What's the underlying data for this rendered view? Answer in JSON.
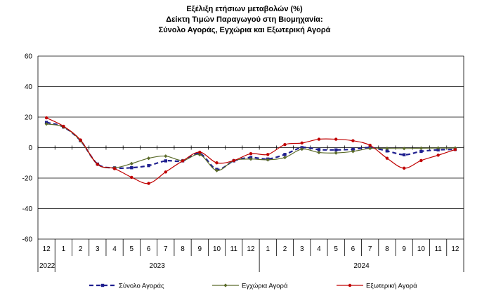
{
  "chart_data": {
    "type": "line",
    "title_lines": [
      "Εξέλιξη ετήσιων μεταβολών (%)",
      "Δείκτη Τιμών Παραγωγού στη Βιομηχανία:",
      "Σύνολο Αγοράς, Εγχώρια και Εξωτερική Αγορά"
    ],
    "xlabel": "",
    "ylabel": "",
    "ylim": [
      -60,
      60
    ],
    "yticks": [
      "60",
      "40",
      "20",
      "0",
      "-20",
      "-40",
      "-60"
    ],
    "grid": true,
    "legend_position": "bottom",
    "categories": [
      "12",
      "1",
      "2",
      "3",
      "4",
      "5",
      "6",
      "7",
      "8",
      "9",
      "10",
      "11",
      "12",
      "1",
      "2",
      "3",
      "4",
      "5",
      "6",
      "7",
      "8",
      "9",
      "10",
      "11",
      "12"
    ],
    "year_groups": [
      {
        "label": "2022",
        "start": 0,
        "end": 0
      },
      {
        "label": "2023",
        "start": 1,
        "end": 12
      },
      {
        "label": "2024",
        "start": 13,
        "end": 24
      }
    ],
    "series": [
      {
        "name": "Σύνολο Αγοράς",
        "color": "#1f1f8f",
        "style": "dashed",
        "marker": "square",
        "values": [
          16.5,
          13.5,
          4.5,
          -10.8,
          -13.3,
          -13.2,
          -11.8,
          -8.7,
          -8.7,
          -3.9,
          -14.3,
          -8.7,
          -6.5,
          -7.5,
          -4.5,
          0.0,
          -1.3,
          -1.5,
          -1.1,
          0.0,
          -2.2,
          -4.7,
          -2.5,
          -1.5,
          -1.2
        ]
      },
      {
        "name": "Εγχώρια Αγορά",
        "color": "#5b6b2a",
        "style": "solid",
        "marker": "diamond",
        "values": [
          15.5,
          13.5,
          4.5,
          -11.0,
          -13.2,
          -10.5,
          -7.0,
          -5.6,
          -8.5,
          -4.6,
          -15.0,
          -8.5,
          -7.5,
          -8.0,
          -6.5,
          -1.0,
          -3.2,
          -3.5,
          -2.5,
          -0.5,
          -0.5,
          -0.6,
          -0.4,
          -0.3,
          -0.3
        ]
      },
      {
        "name": "Εξωτερική Αγορά",
        "color": "#c00000",
        "style": "solid",
        "marker": "circle",
        "values": [
          19.5,
          14.0,
          5.0,
          -11.0,
          -13.8,
          -19.5,
          -23.5,
          -16.0,
          -8.7,
          -3.0,
          -10.0,
          -8.5,
          -4.0,
          -4.5,
          2.0,
          3.0,
          5.5,
          5.5,
          4.5,
          1.5,
          -7.0,
          -13.5,
          -8.5,
          -5.0,
          -1.3
        ]
      }
    ]
  }
}
